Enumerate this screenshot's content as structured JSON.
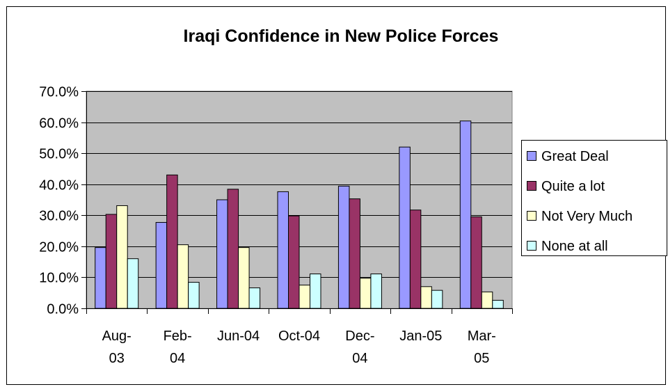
{
  "chart_data": {
    "type": "bar",
    "title": "Iraqi Confidence in New Police Forces",
    "xlabel": "",
    "ylabel": "",
    "categories": [
      [
        "Aug-",
        "03"
      ],
      [
        "Feb-",
        "04"
      ],
      [
        "Jun-04"
      ],
      [
        "Oct-04"
      ],
      [
        "Dec-",
        "04"
      ],
      [
        "Jan-05"
      ],
      [
        "Mar-",
        "05"
      ]
    ],
    "series": [
      {
        "name": "Great Deal",
        "color": "#9999ff",
        "values": [
          19.6,
          27.7,
          35.0,
          37.6,
          39.4,
          52.0,
          60.4
        ]
      },
      {
        "name": "Quite a lot",
        "color": "#993366",
        "values": [
          30.3,
          43.0,
          38.4,
          29.8,
          35.3,
          31.7,
          29.5
        ]
      },
      {
        "name": "Not Very Much",
        "color": "#ffffcc",
        "values": [
          33.1,
          20.5,
          19.6,
          7.5,
          9.7,
          7.0,
          5.3
        ]
      },
      {
        "name": "None at all",
        "color": "#ccffff",
        "values": [
          16.0,
          8.4,
          6.6,
          11.1,
          11.1,
          5.8,
          2.6
        ]
      }
    ],
    "yticks": [
      "0.0%",
      "10.0%",
      "20.0%",
      "30.0%",
      "40.0%",
      "50.0%",
      "60.0%",
      "70.0%"
    ],
    "ylim": [
      0,
      70
    ],
    "grid": true,
    "legend_position": "right",
    "plot_background": "#c0c0c0"
  }
}
